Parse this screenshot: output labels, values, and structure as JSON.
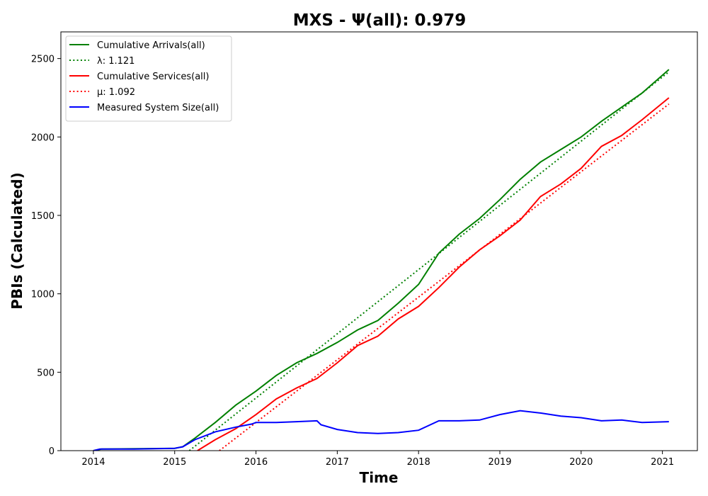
{
  "chart_data": {
    "type": "line",
    "title": "MXS -  Ψ(all): 0.979",
    "xlabel": "Time",
    "ylabel": "PBIs (Calculated)",
    "x_ticks": [
      "2014",
      "2015",
      "2016",
      "2017",
      "2018",
      "2019",
      "2020",
      "2021"
    ],
    "y_ticks": [
      "0",
      "500",
      "1000",
      "1500",
      "2000",
      "2500"
    ],
    "xlim": [
      2013.6,
      2021.43
    ],
    "ylim": [
      0,
      2670
    ],
    "grid": false,
    "legend_position": "top-left",
    "series": [
      {
        "name": "Cumulative Arrivals(all)",
        "color": "#008000",
        "style": "solid",
        "x": [
          2014.0,
          2014.1,
          2015.0,
          2015.1,
          2015.25,
          2015.5,
          2015.75,
          2016.0,
          2016.25,
          2016.5,
          2016.75,
          2017.0,
          2017.25,
          2017.5,
          2017.75,
          2018.0,
          2018.25,
          2018.5,
          2018.75,
          2019.0,
          2019.25,
          2019.5,
          2019.75,
          2020.0,
          2020.25,
          2020.5,
          2020.75,
          2021.08
        ],
        "y": [
          0,
          10,
          15,
          25,
          80,
          180,
          290,
          380,
          480,
          560,
          620,
          690,
          770,
          830,
          940,
          1060,
          1260,
          1380,
          1480,
          1600,
          1730,
          1840,
          1920,
          2000,
          2100,
          2190,
          2280,
          2430
        ]
      },
      {
        "name": "λ: 1.121",
        "color": "#008000",
        "style": "dotted",
        "x": [
          2015.18,
          2021.08
        ],
        "y": [
          0,
          2415
        ]
      },
      {
        "name": "Cumulative Services(all)",
        "color": "#ff0000",
        "style": "solid",
        "x": [
          2015.28,
          2015.5,
          2015.75,
          2016.0,
          2016.25,
          2016.5,
          2016.75,
          2017.0,
          2017.25,
          2017.5,
          2017.75,
          2018.0,
          2018.25,
          2018.5,
          2018.75,
          2019.0,
          2019.25,
          2019.5,
          2019.75,
          2020.0,
          2020.25,
          2020.5,
          2020.75,
          2021.08
        ],
        "y": [
          0,
          70,
          140,
          230,
          330,
          400,
          460,
          560,
          670,
          730,
          840,
          920,
          1040,
          1170,
          1280,
          1370,
          1470,
          1620,
          1700,
          1800,
          1940,
          2010,
          2110,
          2250
        ]
      },
      {
        "name": "μ: 1.092",
        "color": "#ff0000",
        "style": "dotted",
        "x": [
          2015.55,
          2021.08
        ],
        "y": [
          0,
          2210
        ]
      },
      {
        "name": "Measured System Size(all)",
        "color": "#0000ff",
        "style": "solid",
        "x": [
          2014.0,
          2014.08,
          2014.5,
          2015.0,
          2015.1,
          2015.25,
          2015.5,
          2015.75,
          2015.95,
          2016.0,
          2016.25,
          2016.5,
          2016.75,
          2016.8,
          2017.0,
          2017.25,
          2017.5,
          2017.75,
          2018.0,
          2018.25,
          2018.5,
          2018.75,
          2019.0,
          2019.25,
          2019.5,
          2019.75,
          2020.0,
          2020.25,
          2020.5,
          2020.75,
          2021.08
        ],
        "y": [
          0,
          10,
          10,
          15,
          25,
          70,
          120,
          150,
          170,
          180,
          180,
          185,
          190,
          165,
          135,
          115,
          110,
          115,
          130,
          190,
          190,
          195,
          230,
          255,
          240,
          220,
          210,
          190,
          195,
          180,
          185
        ]
      }
    ]
  }
}
